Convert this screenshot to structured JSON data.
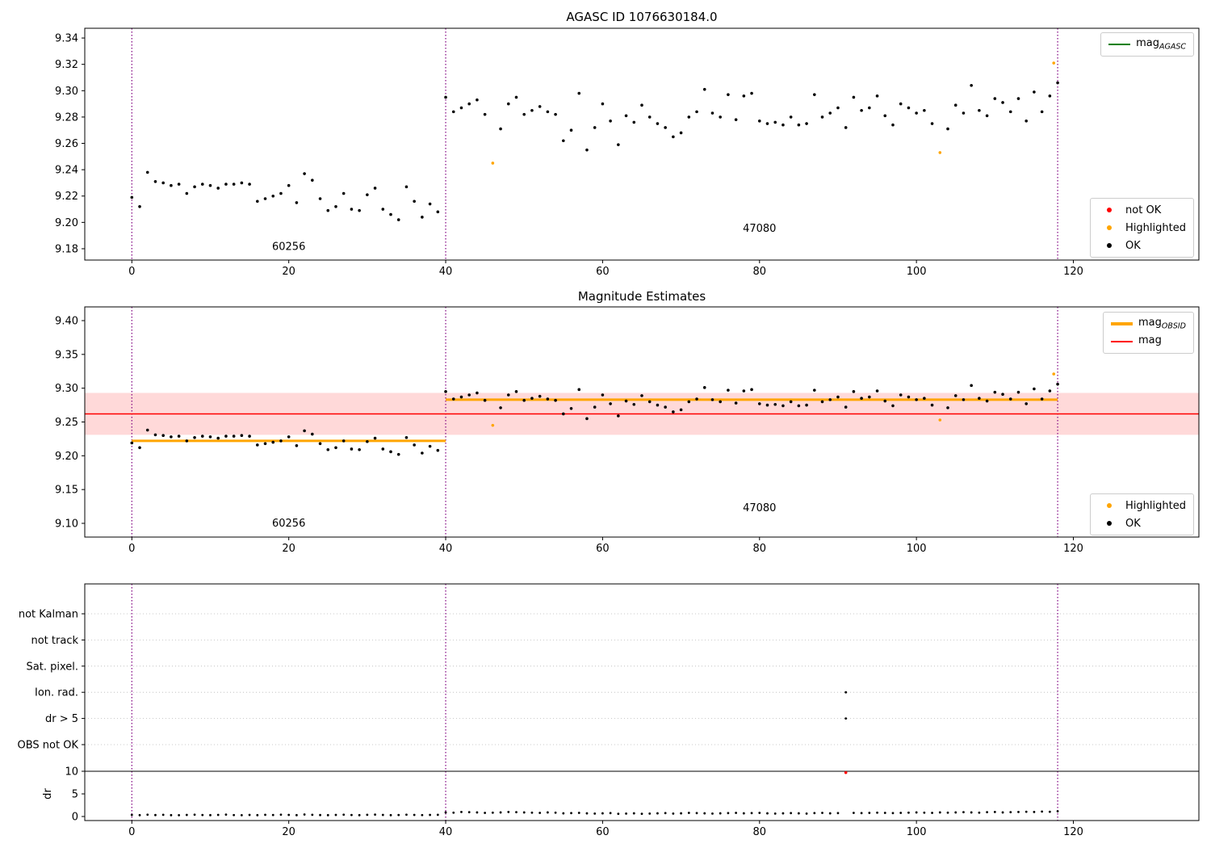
{
  "colors": {
    "ok": "#000000",
    "highlighted": "#ffa500",
    "not_ok": "#ff0000",
    "mag_agasc": "#008000",
    "mag_obsid": "#ffa500",
    "mag": "#ff0000",
    "band": "#ffd9d9",
    "vline": "#800080",
    "grid": "#b8b8b8",
    "frame": "#000000"
  },
  "legends": {
    "p1_top": {
      "entries": [
        {
          "label_main": "mag",
          "label_sub": "AGASC",
          "marker": "line",
          "color": "#008000"
        }
      ]
    },
    "p1_bottom": {
      "entries": [
        {
          "label": "not OK",
          "color": "#ff0000"
        },
        {
          "label": "Highlighted",
          "color": "#ffa500"
        },
        {
          "label": "OK",
          "color": "#000000"
        }
      ]
    },
    "p2_top": {
      "entries": [
        {
          "label_main": "mag",
          "label_sub": "OBSID",
          "marker": "line",
          "color": "#ffa500"
        },
        {
          "label_main": "mag",
          "label_sub": "",
          "marker": "line",
          "color": "#ff0000"
        }
      ]
    },
    "p2_bottom": {
      "entries": [
        {
          "label": "Highlighted",
          "color": "#ffa500"
        },
        {
          "label": "OK",
          "color": "#000000"
        }
      ]
    }
  },
  "chart_data": [
    {
      "type": "scatter",
      "title": "AGASC ID 1076630184.0",
      "xlim": [
        -6,
        136
      ],
      "ylim": [
        9.1714,
        9.3474
      ],
      "xticks": [
        0,
        20,
        40,
        60,
        80,
        100,
        120
      ],
      "yticks": [
        9.18,
        9.2,
        9.22,
        9.24,
        9.26,
        9.28,
        9.3,
        9.32,
        9.34
      ],
      "vlines": [
        0,
        40,
        118
      ],
      "obsid_labels": [
        {
          "text": "60256",
          "x": 20,
          "y": 9.179
        },
        {
          "text": "47080",
          "x": 80,
          "y": 9.193
        }
      ],
      "series": [
        {
          "name": "OK",
          "color": "#000000",
          "x": [
            0,
            1,
            2,
            3,
            4,
            5,
            6,
            7,
            8,
            9,
            10,
            11,
            12,
            13,
            14,
            15,
            16,
            17,
            18,
            19,
            20,
            21,
            22,
            23,
            24,
            25,
            26,
            27,
            28,
            29,
            30,
            31,
            32,
            33,
            34,
            35,
            36,
            37,
            38,
            39,
            40,
            41,
            42,
            43,
            44,
            45,
            47,
            48,
            49,
            50,
            51,
            52,
            53,
            54,
            55,
            56,
            57,
            58,
            59,
            60,
            61,
            62,
            63,
            64,
            65,
            66,
            67,
            68,
            69,
            70,
            71,
            72,
            73,
            74,
            75,
            76,
            77,
            78,
            79,
            80,
            81,
            82,
            83,
            84,
            85,
            86,
            87,
            88,
            89,
            90,
            91,
            92,
            93,
            94,
            95,
            96,
            97,
            98,
            99,
            100,
            101,
            102,
            104,
            105,
            106,
            107,
            108,
            109,
            110,
            111,
            112,
            113,
            114,
            115,
            116,
            117,
            118
          ],
          "y": [
            9.219,
            9.212,
            9.238,
            9.231,
            9.23,
            9.228,
            9.229,
            9.222,
            9.227,
            9.229,
            9.228,
            9.226,
            9.229,
            9.229,
            9.23,
            9.229,
            9.216,
            9.218,
            9.22,
            9.222,
            9.228,
            9.215,
            9.237,
            9.232,
            9.218,
            9.209,
            9.212,
            9.222,
            9.21,
            9.209,
            9.221,
            9.226,
            9.21,
            9.206,
            9.202,
            9.227,
            9.216,
            9.204,
            9.214,
            9.208,
            9.295,
            9.284,
            9.287,
            9.29,
            9.293,
            9.282,
            9.271,
            9.29,
            9.295,
            9.282,
            9.285,
            9.288,
            9.284,
            9.282,
            9.262,
            9.27,
            9.298,
            9.255,
            9.272,
            9.29,
            9.277,
            9.259,
            9.281,
            9.276,
            9.289,
            9.28,
            9.275,
            9.272,
            9.265,
            9.268,
            9.28,
            9.284,
            9.301,
            9.283,
            9.28,
            9.297,
            9.278,
            9.296,
            9.298,
            9.277,
            9.275,
            9.276,
            9.274,
            9.28,
            9.274,
            9.275,
            9.297,
            9.28,
            9.283,
            9.287,
            9.272,
            9.295,
            9.285,
            9.287,
            9.296,
            9.281,
            9.274,
            9.29,
            9.287,
            9.283,
            9.285,
            9.275,
            9.271,
            9.289,
            9.283,
            9.304,
            9.285,
            9.281,
            9.294,
            9.291,
            9.284,
            9.294,
            9.277,
            9.299,
            9.284,
            9.296,
            9.306
          ]
        },
        {
          "name": "Highlighted",
          "color": "#ffa500",
          "x": [
            46,
            103,
            117.5
          ],
          "y": [
            9.245,
            9.253,
            9.321
          ]
        },
        {
          "name": "not OK",
          "color": "#ff0000",
          "x": [],
          "y": []
        }
      ]
    },
    {
      "type": "scatter",
      "title": "Magnitude Estimates",
      "xlim": [
        -6,
        136
      ],
      "ylim": [
        9.0797,
        9.4203
      ],
      "xticks": [
        0,
        20,
        40,
        60,
        80,
        100,
        120
      ],
      "yticks": [
        9.1,
        9.15,
        9.2,
        9.25,
        9.3,
        9.35,
        9.4
      ],
      "vlines": [
        0,
        40,
        118
      ],
      "mag_line": 9.262,
      "band": [
        9.231,
        9.293
      ],
      "obsid_lines": [
        {
          "x0": 0,
          "x1": 40,
          "y": 9.222
        },
        {
          "x0": 40,
          "x1": 118,
          "y": 9.283
        }
      ],
      "obsid_labels": [
        {
          "text": "60256",
          "x": 20,
          "y": 9.095
        },
        {
          "text": "47080",
          "x": 80,
          "y": 9.118
        }
      ],
      "series": [
        {
          "name": "OK",
          "color": "#000000",
          "x": [
            0,
            1,
            2,
            3,
            4,
            5,
            6,
            7,
            8,
            9,
            10,
            11,
            12,
            13,
            14,
            15,
            16,
            17,
            18,
            19,
            20,
            21,
            22,
            23,
            24,
            25,
            26,
            27,
            28,
            29,
            30,
            31,
            32,
            33,
            34,
            35,
            36,
            37,
            38,
            39,
            40,
            41,
            42,
            43,
            44,
            45,
            47,
            48,
            49,
            50,
            51,
            52,
            53,
            54,
            55,
            56,
            57,
            58,
            59,
            60,
            61,
            62,
            63,
            64,
            65,
            66,
            67,
            68,
            69,
            70,
            71,
            72,
            73,
            74,
            75,
            76,
            77,
            78,
            79,
            80,
            81,
            82,
            83,
            84,
            85,
            86,
            87,
            88,
            89,
            90,
            91,
            92,
            93,
            94,
            95,
            96,
            97,
            98,
            99,
            100,
            101,
            102,
            104,
            105,
            106,
            107,
            108,
            109,
            110,
            111,
            112,
            113,
            114,
            115,
            116,
            117,
            118
          ],
          "y": [
            9.219,
            9.212,
            9.238,
            9.231,
            9.23,
            9.228,
            9.229,
            9.222,
            9.227,
            9.229,
            9.228,
            9.226,
            9.229,
            9.229,
            9.23,
            9.229,
            9.216,
            9.218,
            9.22,
            9.222,
            9.228,
            9.215,
            9.237,
            9.232,
            9.218,
            9.209,
            9.212,
            9.222,
            9.21,
            9.209,
            9.221,
            9.226,
            9.21,
            9.206,
            9.202,
            9.227,
            9.216,
            9.204,
            9.214,
            9.208,
            9.295,
            9.284,
            9.287,
            9.29,
            9.293,
            9.282,
            9.271,
            9.29,
            9.295,
            9.282,
            9.285,
            9.288,
            9.284,
            9.282,
            9.262,
            9.27,
            9.298,
            9.255,
            9.272,
            9.29,
            9.277,
            9.259,
            9.281,
            9.276,
            9.289,
            9.28,
            9.275,
            9.272,
            9.265,
            9.268,
            9.28,
            9.284,
            9.301,
            9.283,
            9.28,
            9.297,
            9.278,
            9.296,
            9.298,
            9.277,
            9.275,
            9.276,
            9.274,
            9.28,
            9.274,
            9.275,
            9.297,
            9.28,
            9.283,
            9.287,
            9.272,
            9.295,
            9.285,
            9.287,
            9.296,
            9.281,
            9.274,
            9.29,
            9.287,
            9.283,
            9.285,
            9.275,
            9.271,
            9.289,
            9.283,
            9.304,
            9.285,
            9.281,
            9.294,
            9.291,
            9.284,
            9.294,
            9.277,
            9.299,
            9.284,
            9.296,
            9.306
          ]
        },
        {
          "name": "Highlighted",
          "color": "#ffa500",
          "x": [
            46,
            103,
            117.5
          ],
          "y": [
            9.245,
            9.253,
            9.321
          ]
        }
      ]
    },
    {
      "type": "scatter",
      "title": "",
      "xlim": [
        -6,
        136
      ],
      "xticks": [
        0,
        20,
        40,
        60,
        80,
        100,
        120
      ],
      "vlines": [
        0,
        40,
        118
      ],
      "flag_rows": [
        "not Kalman",
        "not track",
        "Sat. pixel.",
        "Ion. rad.",
        "dr > 5",
        "OBS not OK"
      ],
      "flag_points": [
        {
          "row": "Ion. rad.",
          "x": 91
        },
        {
          "row": "dr > 5",
          "x": 91
        }
      ],
      "dr_axis": {
        "label": "dr",
        "ticks": [
          0,
          5,
          10
        ],
        "limit_line": 10
      },
      "dr_ok": {
        "x": [
          0,
          1,
          2,
          3,
          4,
          5,
          6,
          7,
          8,
          9,
          10,
          11,
          12,
          13,
          14,
          15,
          16,
          17,
          18,
          19,
          20,
          21,
          22,
          23,
          24,
          25,
          26,
          27,
          28,
          29,
          30,
          31,
          32,
          33,
          34,
          35,
          36,
          37,
          38,
          39,
          40,
          41,
          42,
          43,
          44,
          45,
          46,
          47,
          48,
          49,
          50,
          51,
          52,
          53,
          54,
          55,
          56,
          57,
          58,
          59,
          60,
          61,
          62,
          63,
          64,
          65,
          66,
          67,
          68,
          69,
          70,
          71,
          72,
          73,
          74,
          75,
          76,
          77,
          78,
          79,
          80,
          81,
          82,
          83,
          84,
          85,
          86,
          87,
          88,
          89,
          90,
          92,
          93,
          94,
          95,
          96,
          97,
          98,
          99,
          100,
          101,
          102,
          103,
          104,
          105,
          106,
          107,
          108,
          109,
          110,
          111,
          112,
          113,
          114,
          115,
          116,
          117,
          118
        ],
        "y": [
          0.35,
          0.3,
          0.4,
          0.32,
          0.38,
          0.3,
          0.28,
          0.35,
          0.4,
          0.33,
          0.3,
          0.36,
          0.42,
          0.31,
          0.29,
          0.35,
          0.3,
          0.38,
          0.33,
          0.4,
          0.36,
          0.3,
          0.45,
          0.38,
          0.32,
          0.3,
          0.35,
          0.4,
          0.33,
          0.3,
          0.38,
          0.42,
          0.35,
          0.3,
          0.33,
          0.4,
          0.36,
          0.31,
          0.35,
          0.38,
          0.9,
          0.85,
          1.0,
          0.95,
          0.9,
          0.8,
          0.85,
          0.9,
          1.0,
          0.95,
          0.9,
          0.85,
          0.8,
          0.9,
          0.85,
          0.7,
          0.75,
          0.8,
          0.7,
          0.65,
          0.7,
          0.75,
          0.6,
          0.65,
          0.7,
          0.6,
          0.65,
          0.7,
          0.75,
          0.65,
          0.7,
          0.8,
          0.75,
          0.7,
          0.65,
          0.7,
          0.75,
          0.8,
          0.7,
          0.75,
          0.8,
          0.7,
          0.65,
          0.7,
          0.75,
          0.7,
          0.65,
          0.75,
          0.8,
          0.7,
          0.75,
          0.8,
          0.75,
          0.8,
          0.85,
          0.8,
          0.75,
          0.8,
          0.85,
          0.9,
          0.85,
          0.8,
          0.9,
          0.85,
          0.9,
          0.95,
          0.9,
          0.85,
          0.95,
          1.0,
          0.9,
          0.95,
          1.0,
          1.05,
          1.0,
          1.1,
          1.05,
          1.15
        ]
      },
      "dr_not_ok": {
        "x": [
          91
        ],
        "y": [
          9.7
        ]
      }
    }
  ]
}
